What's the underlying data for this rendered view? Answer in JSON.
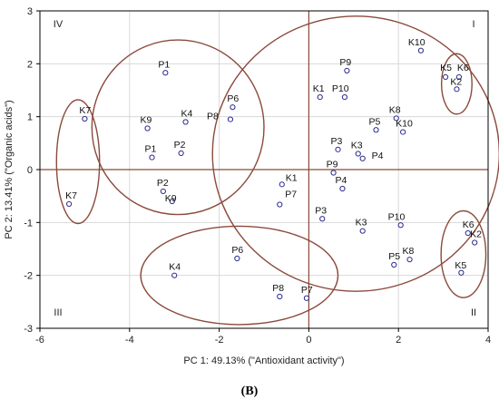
{
  "chart_data": {
    "type": "scatter",
    "xlabel": "PC 1: 49.13% (\"Antioxidant activity\")",
    "ylabel": "PC 2: 13.41% (\"Organic acids\")",
    "xlim": [
      -6,
      4
    ],
    "ylim": [
      -3,
      3
    ],
    "xticks": [
      -6,
      -4,
      -2,
      0,
      2,
      4
    ],
    "yticks": [
      -3,
      -2,
      -1,
      0,
      1,
      2,
      3
    ],
    "grid": true,
    "reference_lines": {
      "x": 0,
      "y": 0
    },
    "quadrants": [
      {
        "label": "I",
        "position": "top-right"
      },
      {
        "label": "II",
        "position": "bottom-right"
      },
      {
        "label": "III",
        "position": "bottom-left"
      },
      {
        "label": "IV",
        "position": "top-left"
      }
    ],
    "points": [
      {
        "label": "P1",
        "x": -3.2,
        "y": 1.83
      },
      {
        "label": "P6",
        "x": -1.7,
        "y": 1.18
      },
      {
        "label": "P8",
        "x": -1.75,
        "y": 0.95
      },
      {
        "label": "K9",
        "x": -3.6,
        "y": 0.78
      },
      {
        "label": "K4",
        "x": -2.75,
        "y": 0.9
      },
      {
        "label": "P1",
        "x": -3.5,
        "y": 0.23
      },
      {
        "label": "P2",
        "x": -2.85,
        "y": 0.31
      },
      {
        "label": "P2",
        "x": -3.25,
        "y": -0.41
      },
      {
        "label": "K9",
        "x": -3.05,
        "y": -0.6
      },
      {
        "label": "K7",
        "x": -5.0,
        "y": 0.96
      },
      {
        "label": "K7",
        "x": -5.35,
        "y": -0.65
      },
      {
        "label": "P6",
        "x": -1.6,
        "y": -1.68
      },
      {
        "label": "K4",
        "x": -3.0,
        "y": -2.0
      },
      {
        "label": "P8",
        "x": -0.65,
        "y": -2.4
      },
      {
        "label": "P7",
        "x": -0.05,
        "y": -2.43
      },
      {
        "label": "K1",
        "x": -0.6,
        "y": -0.28
      },
      {
        "label": "P7",
        "x": -0.65,
        "y": -0.66
      },
      {
        "label": "P9",
        "x": 0.85,
        "y": 1.87
      },
      {
        "label": "K1",
        "x": 0.25,
        "y": 1.37
      },
      {
        "label": "P10",
        "x": 0.8,
        "y": 1.37
      },
      {
        "label": "K10",
        "x": 2.5,
        "y": 2.25
      },
      {
        "label": "K8",
        "x": 1.95,
        "y": 0.97
      },
      {
        "label": "P5",
        "x": 1.5,
        "y": 0.75
      },
      {
        "label": "K10",
        "x": 2.1,
        "y": 0.71
      },
      {
        "label": "P3",
        "x": 0.65,
        "y": 0.38
      },
      {
        "label": "K3",
        "x": 1.1,
        "y": 0.3
      },
      {
        "label": "P4",
        "x": 1.2,
        "y": 0.21
      },
      {
        "label": "P9",
        "x": 0.55,
        "y": -0.06
      },
      {
        "label": "P4",
        "x": 0.75,
        "y": -0.36
      },
      {
        "label": "P3",
        "x": 0.3,
        "y": -0.93
      },
      {
        "label": "K3",
        "x": 1.2,
        "y": -1.16
      },
      {
        "label": "P10",
        "x": 2.05,
        "y": -1.05
      },
      {
        "label": "P5",
        "x": 1.9,
        "y": -1.8
      },
      {
        "label": "K8",
        "x": 2.25,
        "y": -1.7
      },
      {
        "label": "K5",
        "x": 3.05,
        "y": 1.75
      },
      {
        "label": "K6",
        "x": 3.35,
        "y": 1.75
      },
      {
        "label": "K2",
        "x": 3.3,
        "y": 1.52
      },
      {
        "label": "K6",
        "x": 3.55,
        "y": -1.2
      },
      {
        "label": "K2",
        "x": 3.7,
        "y": -1.38
      },
      {
        "label": "K5",
        "x": 3.4,
        "y": -1.95
      }
    ],
    "point_label_offsets": {
      "0": [
        -8,
        -6
      ],
      "1": [
        -6,
        -6
      ],
      "2": [
        -26,
        0
      ],
      "3": [
        -8,
        -6
      ],
      "4": [
        -5,
        -6
      ],
      "5": [
        -8,
        -6
      ],
      "6": [
        -8,
        -6
      ],
      "7": [
        -7,
        -6
      ],
      "8": [
        -8,
        0
      ],
      "9": [
        -6,
        -6
      ],
      "10": [
        -4,
        -6
      ],
      "11": [
        -6,
        -6
      ],
      "12": [
        -6,
        -6
      ],
      "13": [
        -8,
        -6
      ],
      "14": [
        -6,
        -6
      ],
      "15": [
        4,
        -4
      ],
      "16": [
        6,
        -8
      ],
      "17": [
        -8,
        -6
      ],
      "18": [
        -8,
        -6
      ],
      "19": [
        -14,
        -6
      ],
      "20": [
        -14,
        -6
      ],
      "21": [
        -8,
        -6
      ],
      "22": [
        -8,
        -6
      ],
      "23": [
        -8,
        -6
      ],
      "24": [
        -8,
        -6
      ],
      "25": [
        -8,
        -6
      ],
      "26": [
        10,
        0
      ],
      "27": [
        -8,
        -6
      ],
      "28": [
        -8,
        -6
      ],
      "29": [
        -8,
        -6
      ],
      "30": [
        -8,
        -6
      ],
      "31": [
        -14,
        -6
      ],
      "32": [
        -6,
        -6
      ],
      "33": [
        -8,
        -6
      ],
      "34": [
        -6,
        -7
      ],
      "35": [
        -2,
        -7
      ],
      "36": [
        -7,
        -5
      ],
      "37": [
        -6,
        -6
      ],
      "38": [
        -5,
        -6
      ],
      "39": [
        -7,
        -5
      ]
    },
    "ellipses": [
      {
        "name": "group-k7",
        "cx": -5.15,
        "cy": 0.15,
        "rx": 0.48,
        "ry": 1.17
      },
      {
        "name": "group-upper-left",
        "cx": -2.92,
        "cy": 0.8,
        "rx": 1.92,
        "ry": 1.65
      },
      {
        "name": "group-lower-center",
        "cx": -1.55,
        "cy": -2.0,
        "rx": 2.2,
        "ry": 0.93
      },
      {
        "name": "group-right-center",
        "cx": 1.05,
        "cy": 0.3,
        "rx": 3.2,
        "ry": 2.6
      },
      {
        "name": "group-k-upper-right",
        "cx": 3.3,
        "cy": 1.62,
        "rx": 0.34,
        "ry": 0.57
      },
      {
        "name": "group-k-lower-right",
        "cx": 3.45,
        "cy": -1.6,
        "rx": 0.5,
        "ry": 0.82
      }
    ],
    "colors": {
      "ellipse": "#8b4a3c",
      "refline": "#8b4a3c",
      "point": "#2a2a8c",
      "grid": "#d8d8d8"
    }
  },
  "caption": "(B)"
}
